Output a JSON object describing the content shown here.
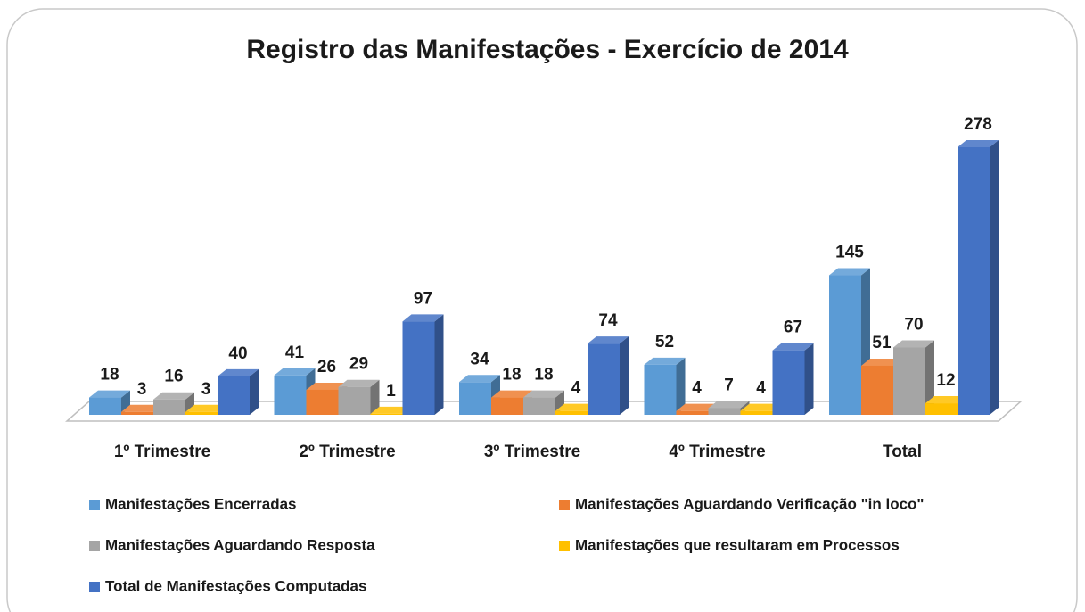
{
  "chart_data": {
    "type": "bar3d",
    "title": "Registro das Manifestações - Exercício de 2014",
    "categories": [
      "1º Trimestre",
      "2º Trimestre",
      "3º Trimestre",
      "4º Trimestre",
      "Total"
    ],
    "series": [
      {
        "name": "Manifestações Encerradas",
        "color": "#5b9bd5",
        "values": [
          18,
          41,
          34,
          52,
          145
        ]
      },
      {
        "name": "Manifestações Aguardando Verificação \"in loco\"",
        "color": "#ed7d31",
        "values": [
          3,
          26,
          18,
          4,
          51
        ]
      },
      {
        "name": "Manifestações Aguardando Resposta",
        "color": "#a5a5a5",
        "values": [
          16,
          29,
          18,
          7,
          70
        ]
      },
      {
        "name": "Manifestações que resultaram em Processos",
        "color": "#ffc000",
        "values": [
          3,
          1,
          4,
          4,
          12
        ]
      },
      {
        "name": "Total de Manifestações Computadas",
        "color": "#4472c4",
        "values": [
          40,
          97,
          74,
          67,
          278
        ]
      }
    ],
    "legend": "bottom"
  }
}
